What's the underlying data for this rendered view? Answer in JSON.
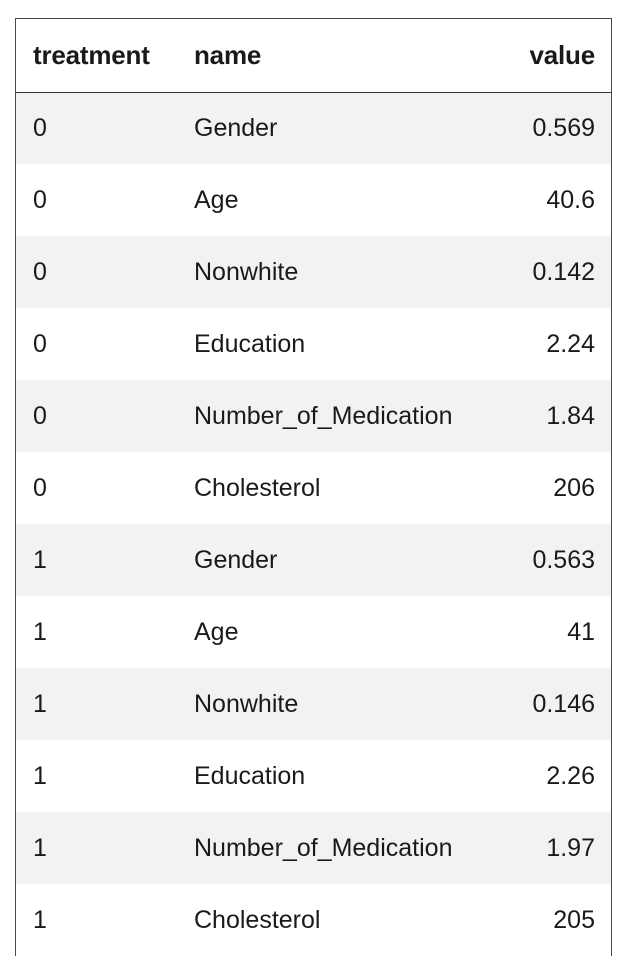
{
  "table": {
    "columns": [
      "treatment",
      "name",
      "value"
    ],
    "rows": [
      {
        "treatment": "0",
        "name": "Gender",
        "value": "0.569"
      },
      {
        "treatment": "0",
        "name": "Age",
        "value": "40.6"
      },
      {
        "treatment": "0",
        "name": "Nonwhite",
        "value": "0.142"
      },
      {
        "treatment": "0",
        "name": "Education",
        "value": "2.24"
      },
      {
        "treatment": "0",
        "name": "Number_of_Medication",
        "value": "1.84"
      },
      {
        "treatment": "0",
        "name": "Cholesterol",
        "value": "206"
      },
      {
        "treatment": "1",
        "name": "Gender",
        "value": "0.563"
      },
      {
        "treatment": "1",
        "name": "Age",
        "value": "41"
      },
      {
        "treatment": "1",
        "name": "Nonwhite",
        "value": "0.146"
      },
      {
        "treatment": "1",
        "name": "Education",
        "value": "2.26"
      },
      {
        "treatment": "1",
        "name": "Number_of_Medication",
        "value": "1.97"
      },
      {
        "treatment": "1",
        "name": "Cholesterol",
        "value": "205"
      }
    ]
  }
}
